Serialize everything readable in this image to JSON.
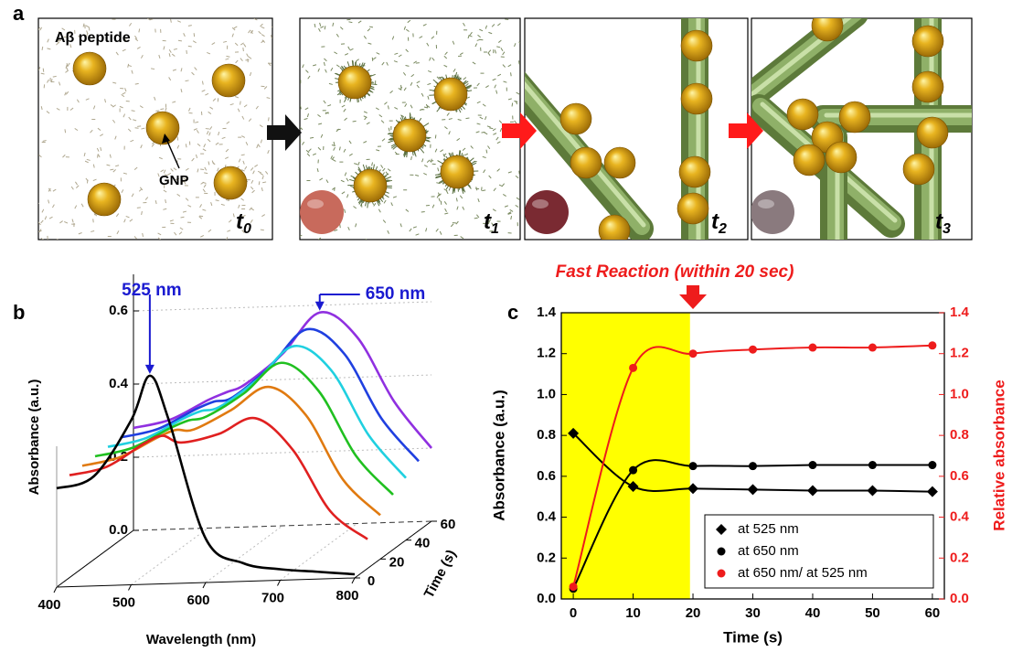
{
  "panel_a": {
    "label": "a",
    "peptide_label": "Aβ peptide",
    "gnp_label": "GNP",
    "frames": [
      {
        "t": "t",
        "sub": "0"
      },
      {
        "t": "t",
        "sub": "1"
      },
      {
        "t": "t",
        "sub": "2"
      },
      {
        "t": "t",
        "sub": "3"
      }
    ]
  },
  "chart_data": [
    {
      "type": "waterfall3d",
      "panel_label": "b",
      "x_label": "Wavelength (nm)",
      "y_label": "Absorbance (a.u.)",
      "z_label": "Time (s)",
      "x": [
        400,
        450,
        500,
        525,
        550,
        600,
        650,
        700,
        750,
        800
      ],
      "xlim": [
        400,
        800
      ],
      "xticks": [
        400,
        500,
        600,
        700,
        800
      ],
      "ylim": [
        0,
        0.7
      ],
      "yticks": [
        {
          "value": 0,
          "label": "0.0"
        },
        0.2,
        0.4,
        0.6
      ],
      "zlim": [
        0,
        60
      ],
      "zticks": [
        0,
        20,
        40,
        60
      ],
      "series": [
        {
          "z": 0,
          "color": "#000000",
          "values": [
            0.27,
            0.3,
            0.45,
            0.57,
            0.45,
            0.12,
            0.05,
            0.03,
            0.02,
            0.01
          ]
        },
        {
          "z": 10,
          "color": "#e02020",
          "values": [
            0.28,
            0.3,
            0.36,
            0.38,
            0.36,
            0.38,
            0.42,
            0.33,
            0.16,
            0.08
          ]
        },
        {
          "z": 20,
          "color": "#e07a10",
          "values": [
            0.28,
            0.3,
            0.35,
            0.37,
            0.37,
            0.42,
            0.48,
            0.4,
            0.22,
            0.12
          ]
        },
        {
          "z": 30,
          "color": "#20c020",
          "values": [
            0.28,
            0.3,
            0.35,
            0.37,
            0.38,
            0.44,
            0.52,
            0.44,
            0.26,
            0.15
          ]
        },
        {
          "z": 40,
          "color": "#20d0e0",
          "values": [
            0.28,
            0.3,
            0.35,
            0.37,
            0.38,
            0.45,
            0.54,
            0.47,
            0.29,
            0.17
          ]
        },
        {
          "z": 50,
          "color": "#2040e0",
          "values": [
            0.28,
            0.3,
            0.35,
            0.37,
            0.38,
            0.46,
            0.56,
            0.49,
            0.31,
            0.19
          ]
        },
        {
          "z": 60,
          "color": "#9030e0",
          "values": [
            0.28,
            0.3,
            0.35,
            0.37,
            0.39,
            0.47,
            0.58,
            0.51,
            0.33,
            0.2
          ]
        }
      ],
      "annotations": [
        {
          "text": "525 nm",
          "x": 525,
          "z": 0,
          "color": "#1a1ad0"
        },
        {
          "text": "650 nm",
          "x": 650,
          "z": 60,
          "color": "#1a1ad0"
        }
      ]
    },
    {
      "type": "scatter",
      "panel_label": "c",
      "x_label": "Time (s)",
      "y_label": "Absorbance (a.u.)",
      "y2_label": "Relative absorbance",
      "y2_color": "#ee1c1c",
      "x": [
        0,
        10,
        20,
        30,
        40,
        50,
        60
      ],
      "xlim": [
        -2,
        62
      ],
      "xticks": [
        0,
        10,
        20,
        30,
        40,
        50,
        60
      ],
      "ylim": [
        0,
        1.4
      ],
      "yticks": [
        {
          "value": 0,
          "label": "0.0"
        },
        0.2,
        0.4,
        0.6,
        0.8,
        {
          "value": 1,
          "label": "1.0"
        },
        1.2,
        1.4
      ],
      "y2lim": [
        0,
        1.4
      ],
      "y2ticks": [
        {
          "value": 0,
          "label": "0.0"
        },
        0.2,
        0.4,
        0.6,
        0.8,
        {
          "value": 1,
          "label": "1.0"
        },
        1.2,
        1.4
      ],
      "highlight_x": [
        -2,
        19.5
      ],
      "highlight_color": "#ffff00",
      "annotation": {
        "text": "Fast Reaction (within 20 sec)",
        "x": 20,
        "color": "#ee1c1c"
      },
      "series": [
        {
          "name": "at 525 nm",
          "color": "#000000",
          "marker": "diamond",
          "values": [
            0.81,
            0.55,
            0.54,
            0.535,
            0.53,
            0.53,
            0.525
          ]
        },
        {
          "name": "at 650 nm",
          "color": "#000000",
          "marker": "circle",
          "values": [
            0.05,
            0.63,
            0.65,
            0.65,
            0.655,
            0.655,
            0.655
          ]
        },
        {
          "name": "at 650 nm/ at 525 nm",
          "color": "#ee1c1c",
          "marker": "circle",
          "axis": "y2",
          "values": [
            0.06,
            1.13,
            1.2,
            1.22,
            1.23,
            1.23,
            1.24
          ]
        }
      ],
      "legend": "lower right"
    }
  ]
}
